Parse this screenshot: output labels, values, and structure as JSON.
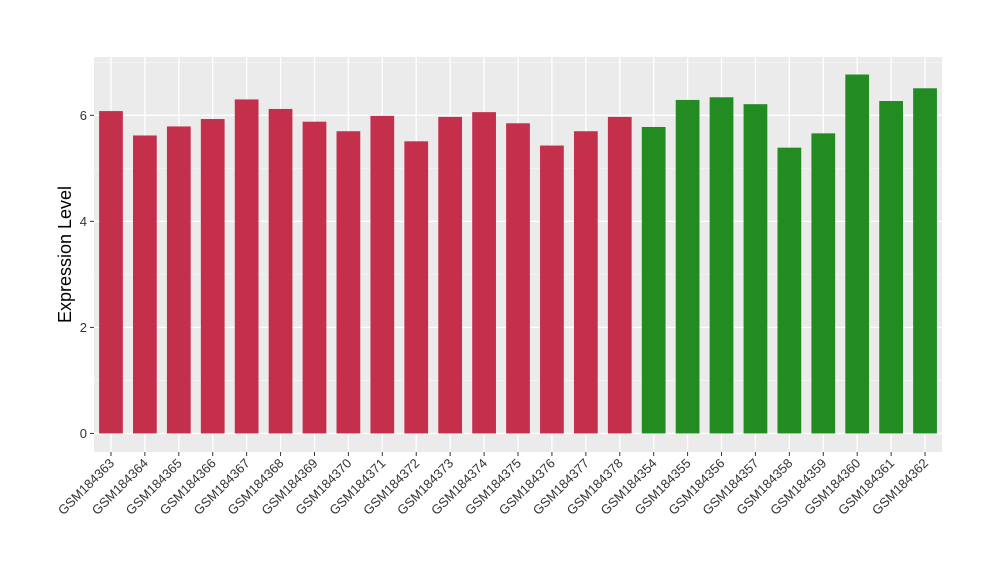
{
  "chart_data": {
    "type": "bar",
    "title": "",
    "xlabel": "",
    "ylabel": "Expression Level",
    "ylim": [
      -0.35,
      7.1
    ],
    "yticks": [
      0,
      2,
      4,
      6
    ],
    "grid": true,
    "legend": "none",
    "categories": [
      "GSM184363",
      "GSM184364",
      "GSM184365",
      "GSM184366",
      "GSM184367",
      "GSM184368",
      "GSM184369",
      "GSM184370",
      "GSM184371",
      "GSM184372",
      "GSM184373",
      "GSM184374",
      "GSM184375",
      "GSM184376",
      "GSM184377",
      "GSM184378",
      "GSM184354",
      "GSM184355",
      "GSM184356",
      "GSM184357",
      "GSM184358",
      "GSM184359",
      "GSM184360",
      "GSM184361",
      "GSM184362"
    ],
    "values": [
      6.08,
      5.62,
      5.79,
      5.93,
      6.3,
      6.12,
      5.88,
      5.7,
      5.99,
      5.51,
      5.97,
      6.06,
      5.85,
      5.43,
      5.7,
      5.97,
      5.78,
      6.29,
      6.34,
      6.21,
      5.39,
      5.66,
      6.77,
      6.27,
      6.51
    ],
    "bar_colors": [
      "#C4304B",
      "#C4304B",
      "#C4304B",
      "#C4304B",
      "#C4304B",
      "#C4304B",
      "#C4304B",
      "#C4304B",
      "#C4304B",
      "#C4304B",
      "#C4304B",
      "#C4304B",
      "#C4304B",
      "#C4304B",
      "#C4304B",
      "#C4304B",
      "#228B22",
      "#228B22",
      "#228B22",
      "#228B22",
      "#228B22",
      "#228B22",
      "#228B22",
      "#228B22",
      "#228B22"
    ],
    "colors": {
      "panel_background": "#EBEBEB",
      "grid_major": "#FFFFFF",
      "grid_minor": "#F5F5F5",
      "group_1": "#C4304B",
      "group_2": "#228B22"
    }
  }
}
